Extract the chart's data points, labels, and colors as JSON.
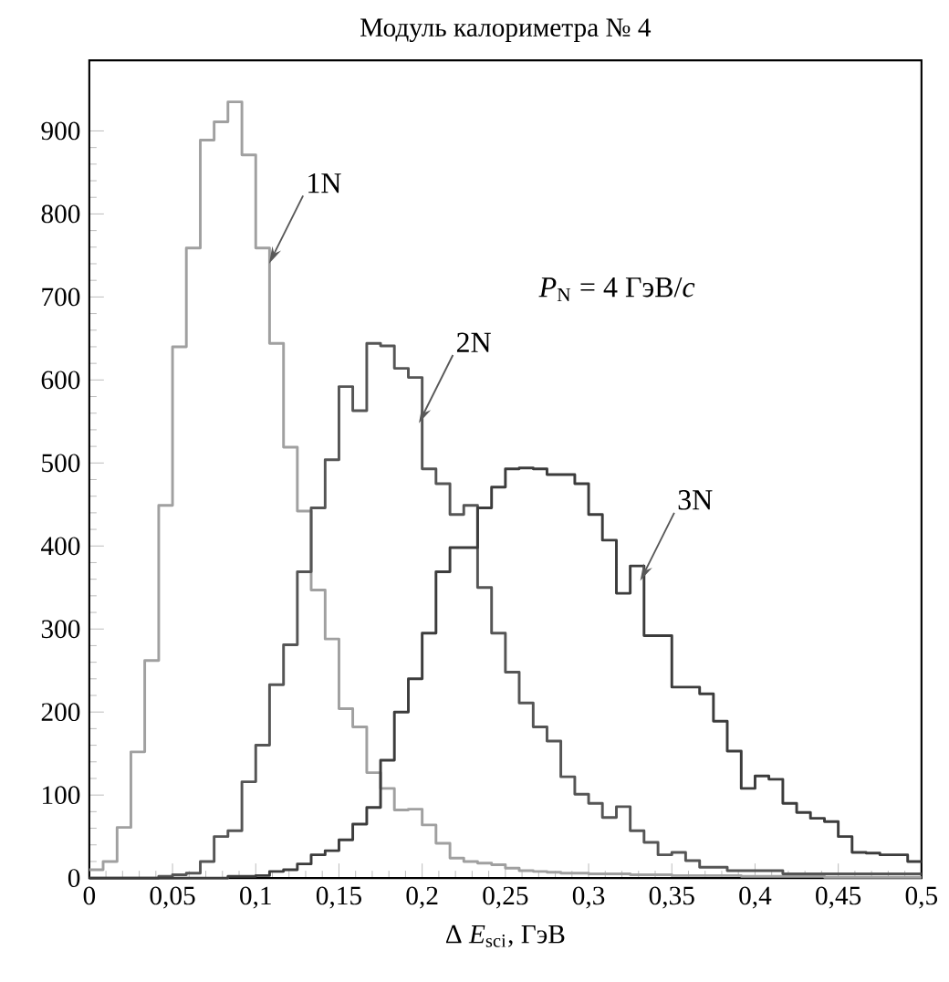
{
  "chart_data": {
    "type": "histogram",
    "title": "Модуль калориметра № 4",
    "xlabel": "Δ *E*$_{sci}$, ГэВ",
    "bins": [
      0,
      0.0083,
      0.0167,
      0.025,
      0.0333,
      0.0417,
      0.05,
      0.0583,
      0.0667,
      0.075,
      0.0833,
      0.0917,
      0.1,
      0.1083,
      0.1167,
      0.125,
      0.1333,
      0.1417,
      0.15,
      0.1583,
      0.1667,
      0.175,
      0.1833,
      0.1917,
      0.2,
      0.2083,
      0.2167,
      0.225,
      0.2333,
      0.2417,
      0.25,
      0.2583,
      0.2667,
      0.275,
      0.2833,
      0.2917,
      0.3,
      0.3083,
      0.3167,
      0.325,
      0.3333,
      0.3417,
      0.35,
      0.3583,
      0.3667,
      0.375,
      0.3833,
      0.3917,
      0.4,
      0.4083,
      0.4167,
      0.425,
      0.4333,
      0.4417,
      0.45,
      0.4583,
      0.4667,
      0.475,
      0.4833,
      0.4917,
      0.5
    ],
    "series": [
      {
        "color": "#a0a0a0",
        "values": [
          10,
          20,
          61,
          152,
          262,
          449,
          640,
          759,
          889,
          911,
          935,
          871,
          759,
          644,
          519,
          442,
          347,
          288,
          204,
          182,
          127,
          108,
          82,
          83,
          64,
          42,
          24,
          20,
          18,
          16,
          12,
          9,
          8,
          7,
          6,
          6,
          5,
          5,
          5,
          4,
          4,
          4,
          3,
          3,
          3,
          3,
          3,
          2,
          2,
          2,
          2,
          2,
          2,
          1,
          1,
          1,
          1,
          1,
          1,
          1
        ]
      },
      {
        "color": "#555555",
        "values": [
          0,
          0,
          0,
          0,
          0,
          2,
          4,
          6,
          20,
          50,
          57,
          116,
          160,
          233,
          281,
          369,
          446,
          504,
          592,
          563,
          644,
          641,
          614,
          603,
          493,
          475,
          438,
          449,
          350,
          295,
          248,
          211,
          182,
          165,
          122,
          101,
          90,
          73,
          86,
          57,
          43,
          28,
          31,
          21,
          13,
          13,
          9,
          9,
          9,
          9,
          5,
          5,
          5,
          5,
          5,
          5,
          5,
          5,
          5,
          5
        ]
      },
      {
        "color": "#3c3c3c",
        "values": [
          0,
          0,
          0,
          0,
          0,
          0,
          0,
          0,
          0,
          0,
          2,
          2,
          3,
          8,
          10,
          17,
          28,
          33,
          46,
          65,
          85,
          142,
          200,
          240,
          295,
          369,
          398,
          398,
          446,
          471,
          493,
          494,
          493,
          486,
          486,
          475,
          438,
          407,
          343,
          376,
          292,
          292,
          230,
          230,
          222,
          189,
          153,
          108,
          123,
          119,
          90,
          79,
          72,
          68,
          50,
          31,
          30,
          28,
          28,
          20
        ]
      }
    ],
    "xlim": [
      0,
      0.5
    ],
    "ylim": [
      0,
      985
    ],
    "xticks": [
      0,
      {
        "value": 0.05,
        "label": "0,05"
      },
      {
        "value": 0.1,
        "label": "0,1"
      },
      {
        "value": 0.15,
        "label": "0,15"
      },
      {
        "value": 0.2,
        "label": "0,2"
      },
      {
        "value": 0.25,
        "label": "0,25"
      },
      {
        "value": 0.3,
        "label": "0,3"
      },
      {
        "value": 0.35,
        "label": "0,35"
      },
      {
        "value": 0.4,
        "label": "0,4"
      },
      {
        "value": 0.45,
        "label": "0,45"
      },
      {
        "value": 0.5,
        "label": "0,5"
      }
    ],
    "yticks": [
      0,
      100,
      200,
      300,
      400,
      500,
      600,
      700,
      800,
      900
    ],
    "annotations": [
      {
        "text": "1N",
        "x": 0.108,
        "y": 740
      },
      {
        "text": "2N",
        "x": 0.198,
        "y": 548
      },
      {
        "text": "3N",
        "x": 0.331,
        "y": 358
      },
      "*P*$_{N}$ = 4 ГэВ/*c*"
    ]
  }
}
